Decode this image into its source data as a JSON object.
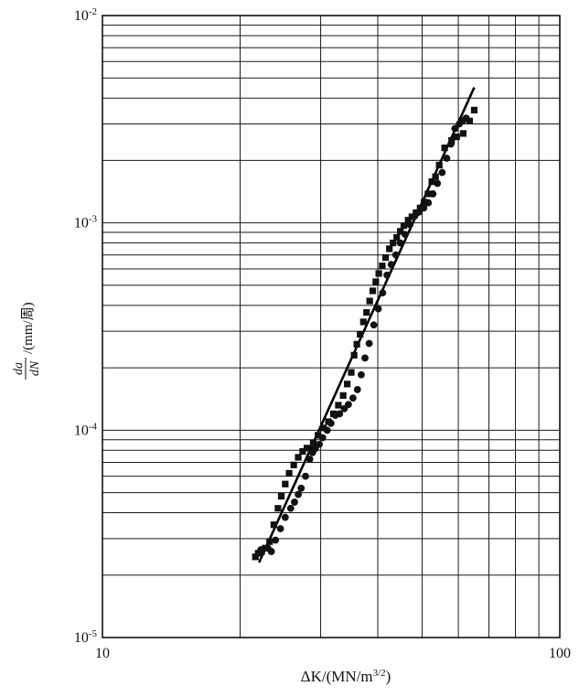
{
  "chart_data": {
    "type": "scatter",
    "title": "",
    "xlabel": "ΔK/(MN/m^3/2)",
    "ylabel": "da/dN/(mm/周)",
    "xscale": "log",
    "yscale": "log",
    "xlim": [
      10,
      100
    ],
    "ylim": [
      1e-05,
      0.01
    ],
    "grid": true,
    "x_tick_labels": [
      "10",
      "100"
    ],
    "y_tick_labels": [
      {
        "base": "10",
        "exp": "-5",
        "value": 1e-05
      },
      {
        "base": "10",
        "exp": "-4",
        "value": 0.0001
      },
      {
        "base": "10",
        "exp": "-3",
        "value": 0.001
      },
      {
        "base": "10",
        "exp": "-2",
        "value": 0.01
      }
    ],
    "series": [
      {
        "marker": "square",
        "points": [
          [
            21.6,
            2.45e-05
          ],
          [
            21.9,
            2.55e-05
          ],
          [
            22.3,
            2.6e-05
          ],
          [
            22.7,
            2.7e-05
          ],
          [
            23.2,
            2.9e-05
          ],
          [
            23.7,
            3.5e-05
          ],
          [
            24.2,
            4.2e-05
          ],
          [
            24.6,
            4.8e-05
          ],
          [
            25.1,
            5.5e-05
          ],
          [
            25.6,
            6.2e-05
          ],
          [
            26.2,
            6.8e-05
          ],
          [
            26.8,
            7.4e-05
          ],
          [
            27.4,
            7.9e-05
          ],
          [
            28.0,
            8.2e-05
          ],
          [
            28.9,
            8.7e-05
          ],
          [
            29.6,
            9.45e-05
          ],
          [
            30.4,
            0.0001025
          ],
          [
            31.2,
            0.00011
          ],
          [
            32.0,
            0.00012
          ],
          [
            32.8,
            0.000132
          ],
          [
            33.6,
            0.000147
          ],
          [
            34.3,
            0.000167
          ],
          [
            35.0,
            0.00019
          ],
          [
            35.5,
            0.00023
          ],
          [
            36.0,
            0.00026
          ],
          [
            36.6,
            0.00029
          ],
          [
            37.2,
            0.000333
          ],
          [
            37.8,
            0.00037
          ],
          [
            38.4,
            0.00042
          ],
          [
            39.0,
            0.00047
          ],
          [
            39.6,
            0.00052
          ],
          [
            40.2,
            0.00057
          ],
          [
            40.9,
            0.00062
          ],
          [
            41.6,
            0.00068
          ],
          [
            42.4,
            0.00075
          ],
          [
            43.2,
            0.0008
          ],
          [
            44.0,
            0.00085
          ],
          [
            44.8,
            0.00091
          ],
          [
            45.6,
            0.00097
          ],
          [
            46.6,
            0.00103
          ],
          [
            47.5,
            0.00107
          ],
          [
            48.5,
            0.00112
          ],
          [
            49.5,
            0.00118
          ],
          [
            50.5,
            0.00126
          ],
          [
            51.5,
            0.00138
          ],
          [
            52.5,
            0.00158
          ],
          [
            53.5,
            0.00167
          ],
          [
            54.5,
            0.0019
          ],
          [
            56.0,
            0.0023
          ],
          [
            58.0,
            0.0025
          ],
          [
            59.5,
            0.0026
          ],
          [
            61.5,
            0.0027
          ],
          [
            63.5,
            0.0031
          ],
          [
            65.0,
            0.0035
          ]
        ]
      },
      {
        "marker": "circle",
        "points": [
          [
            22.2,
            2.65e-05
          ],
          [
            23.0,
            2.7e-05
          ],
          [
            23.4,
            2.6e-05
          ],
          [
            23.9,
            2.95e-05
          ],
          [
            24.5,
            3.35e-05
          ],
          [
            25.1,
            3.8e-05
          ],
          [
            25.8,
            4.2e-05
          ],
          [
            26.3,
            4.5e-05
          ],
          [
            26.8,
            4.9e-05
          ],
          [
            27.2,
            5.25e-05
          ],
          [
            27.8,
            6e-05
          ],
          [
            28.4,
            7.25e-05
          ],
          [
            28.8,
            7.8e-05
          ],
          [
            29.2,
            8.15e-05
          ],
          [
            29.8,
            8.55e-05
          ],
          [
            30.3,
            9.2e-05
          ],
          [
            31.0,
            0.0001
          ],
          [
            31.6,
            0.000108
          ],
          [
            32.3,
            0.000118
          ],
          [
            33.0,
            0.00012
          ],
          [
            33.8,
            0.000127
          ],
          [
            34.5,
            0.000133
          ],
          [
            35.3,
            0.000143
          ],
          [
            36.1,
            0.000157
          ],
          [
            36.8,
            0.000185
          ],
          [
            37.5,
            0.000223
          ],
          [
            38.3,
            0.000262
          ],
          [
            39.2,
            0.000322
          ],
          [
            40.1,
            0.000385
          ],
          [
            41.0,
            0.00046
          ],
          [
            41.9,
            0.00056
          ],
          [
            42.8,
            0.00063
          ],
          [
            43.8,
            0.0007
          ],
          [
            44.8,
            0.0008
          ],
          [
            45.9,
            0.00088
          ],
          [
            47.0,
            0.00098
          ],
          [
            48.2,
            0.00108
          ],
          [
            49.3,
            0.00113
          ],
          [
            50.4,
            0.00118
          ],
          [
            51.6,
            0.00125
          ],
          [
            52.8,
            0.00138
          ],
          [
            54.0,
            0.00155
          ],
          [
            55.3,
            0.00175
          ],
          [
            56.6,
            0.00205
          ],
          [
            57.8,
            0.0024
          ],
          [
            59.0,
            0.00285
          ],
          [
            60.3,
            0.003
          ],
          [
            61.3,
            0.0031
          ],
          [
            62.4,
            0.0032
          ]
        ]
      }
    ],
    "fit_line": {
      "points": [
        [
          22.0,
          2.3e-05
        ],
        [
          65.0,
          0.0045
        ]
      ]
    }
  }
}
